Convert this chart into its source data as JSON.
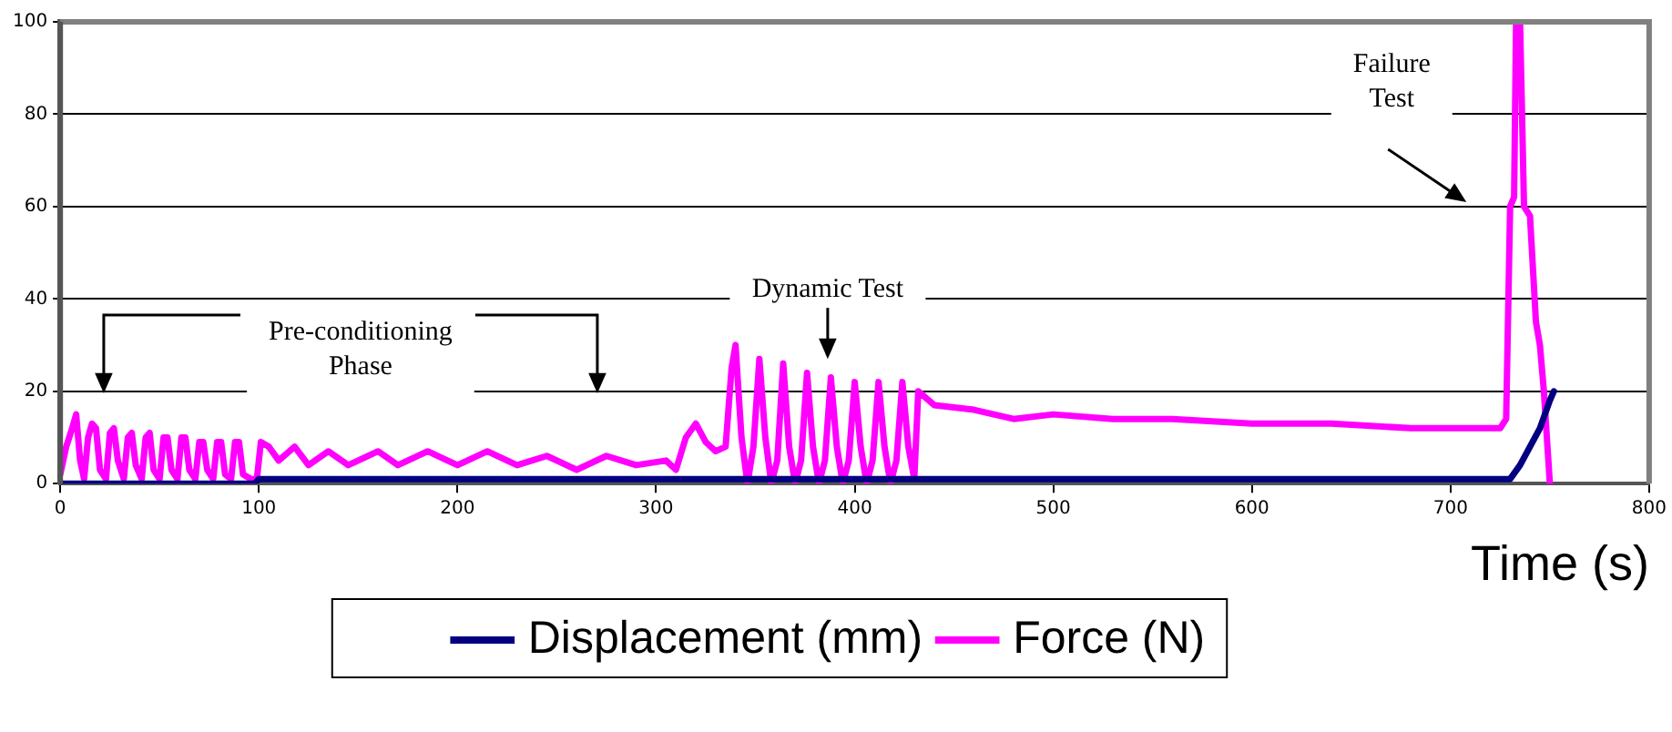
{
  "chart_data": {
    "type": "line",
    "xlabel": "Time (s)",
    "xlim": [
      0,
      800
    ],
    "xticks": [
      0,
      100,
      200,
      300,
      400,
      500,
      600,
      700,
      800
    ],
    "ylim": [
      0,
      100
    ],
    "yticks": [
      0,
      20,
      40,
      60,
      80,
      100
    ],
    "grid": "y",
    "legend": "bottom",
    "marker": "none",
    "line_style": "solid",
    "annotations": [
      "Pre-conditioning\nPhase",
      "Dynamic Test",
      "Failure\nTest"
    ],
    "series": [
      {
        "name": "Displacement (mm)",
        "color": "#000080",
        "x": [
          0,
          98,
          100,
          730,
          735,
          740,
          745,
          750,
          752
        ],
        "values": [
          0,
          0,
          1,
          1,
          4,
          8,
          12,
          18,
          20
        ]
      },
      {
        "name": "Force (N)",
        "color": "#ff00ff",
        "x": [
          0,
          3,
          6,
          8,
          10,
          12,
          14,
          16,
          18,
          20,
          23,
          25,
          27,
          29,
          32,
          34,
          36,
          38,
          41,
          43,
          45,
          47,
          50,
          52,
          54,
          56,
          59,
          61,
          63,
          65,
          68,
          70,
          72,
          74,
          77,
          79,
          81,
          83,
          86,
          88,
          90,
          92,
          96,
          99,
          101,
          105,
          110,
          118,
          125,
          135,
          145,
          160,
          170,
          185,
          200,
          215,
          230,
          245,
          260,
          275,
          290,
          305,
          310,
          315,
          320,
          325,
          330,
          335,
          338,
          340,
          343,
          346,
          349,
          352,
          355,
          358,
          361,
          364,
          367,
          370,
          373,
          376,
          379,
          382,
          385,
          388,
          391,
          394,
          397,
          400,
          403,
          406,
          409,
          412,
          415,
          418,
          421,
          424,
          427,
          430,
          432,
          440,
          460,
          480,
          500,
          530,
          560,
          600,
          640,
          680,
          725,
          728,
          730,
          732,
          733,
          735,
          737,
          740,
          743,
          745,
          747,
          750
        ],
        "values": [
          2,
          8,
          12,
          15,
          5,
          1,
          10,
          13,
          12,
          3,
          1,
          11,
          12,
          5,
          1,
          10,
          11,
          4,
          1,
          10,
          11,
          3,
          1,
          10,
          10,
          3,
          1,
          10,
          10,
          3,
          1,
          9,
          9,
          3,
          1,
          9,
          9,
          2,
          1,
          9,
          9,
          2,
          1,
          1,
          9,
          8,
          5,
          8,
          4,
          7,
          4,
          7,
          4,
          7,
          4,
          7,
          4,
          6,
          3,
          6,
          4,
          5,
          3,
          10,
          13,
          9,
          7,
          8,
          25,
          30,
          10,
          0,
          8,
          27,
          10,
          0,
          5,
          26,
          8,
          0,
          5,
          24,
          8,
          0,
          5,
          23,
          8,
          0,
          5,
          22,
          8,
          0,
          5,
          22,
          8,
          0,
          5,
          22,
          8,
          1,
          20,
          17,
          16,
          14,
          15,
          14,
          14,
          13,
          13,
          12,
          12,
          14,
          60,
          62,
          100,
          100,
          60,
          58,
          35,
          30,
          20,
          0
        ]
      }
    ]
  }
}
